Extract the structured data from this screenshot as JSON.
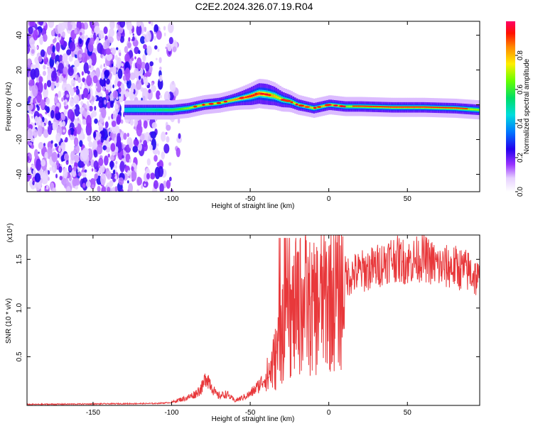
{
  "title": "C2E2.2024.326.07.19.R04",
  "chart_data": [
    {
      "type": "heatmap",
      "xlabel": "Height of straight line (km)",
      "ylabel": "Frequency (Hz)",
      "xlim": [
        -192,
        96
      ],
      "ylim": [
        -50,
        48
      ],
      "xticks": [
        -150,
        -100,
        -50,
        0,
        50
      ],
      "yticks": [
        -40,
        -20,
        0,
        20,
        40
      ],
      "colorbar": {
        "label": "Normalized spectral amplitude",
        "range": [
          0,
          1
        ],
        "ticks": [
          "0.0",
          "0.2",
          "0.4",
          "0.6",
          "0.8"
        ],
        "tick_values": [
          0,
          0.2,
          0.4,
          0.6,
          0.8
        ]
      },
      "ridge": {
        "x": [
          -130,
          -120,
          -110,
          -100,
          -90,
          -80,
          -70,
          -60,
          -55,
          -50,
          -45,
          -40,
          -35,
          -30,
          -25,
          -20,
          -15,
          -10,
          -5,
          0,
          10,
          20,
          40,
          60,
          80,
          96
        ],
        "y": [
          -3,
          -3,
          -3,
          -3,
          -2,
          0,
          1,
          3,
          4,
          5,
          6.5,
          6,
          5,
          3,
          2,
          0,
          -1,
          -2,
          -1,
          0,
          -1,
          -1,
          -1.5,
          -1.5,
          -2,
          -3
        ],
        "amplitude": [
          0.45,
          0.5,
          0.55,
          0.6,
          0.7,
          0.8,
          0.75,
          0.85,
          0.9,
          0.95,
          0.9,
          0.85,
          0.8,
          0.75,
          0.7,
          0.8,
          0.85,
          0.75,
          0.8,
          0.85,
          0.7,
          0.75,
          0.8,
          0.8,
          0.75,
          0.7
        ]
      },
      "noise_region_x": [
        -192,
        -105
      ]
    },
    {
      "type": "line",
      "xlabel": "Height of straight line (km)",
      "ylabel": "SNR (10 * v/v)",
      "y_multiplier": "(x10⁴)",
      "xlim": [
        -192,
        96
      ],
      "ylim": [
        0,
        1.75
      ],
      "xticks": [
        -150,
        -100,
        -50,
        0,
        50
      ],
      "yticks": [
        0.5,
        1.0,
        1.5
      ],
      "ytick_labels": [
        "0.5",
        "1.0",
        "1.5"
      ],
      "color": "#e8383b",
      "envelope": {
        "x": [
          -192,
          -110,
          -100,
          -95,
          -90,
          -85,
          -80,
          -78,
          -75,
          -72,
          -70,
          -65,
          -60,
          -55,
          -50,
          -45,
          -40,
          -35,
          -30,
          -25,
          -20,
          -15,
          -10,
          -5,
          0,
          5,
          10,
          20,
          30,
          40,
          50,
          60,
          70,
          80,
          90,
          96
        ],
        "y": [
          0.01,
          0.02,
          0.03,
          0.06,
          0.08,
          0.12,
          0.2,
          0.32,
          0.22,
          0.12,
          0.1,
          0.12,
          0.05,
          0.08,
          0.12,
          0.2,
          0.3,
          0.5,
          0.8,
          1.0,
          1.15,
          1.2,
          1.1,
          1.25,
          1.3,
          1.3,
          1.35,
          1.4,
          1.45,
          1.55,
          1.5,
          1.55,
          1.45,
          1.45,
          1.4,
          1.3
        ]
      }
    }
  ]
}
